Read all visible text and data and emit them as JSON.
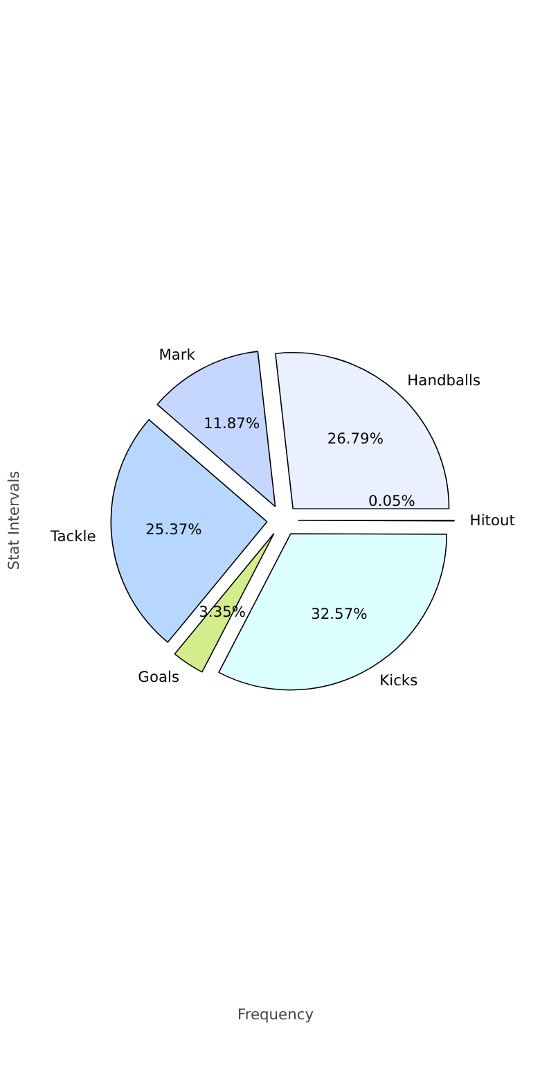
{
  "chart_data": {
    "type": "pie",
    "xlabel": "Frequency",
    "ylabel": "Stat Intervals",
    "categories": [
      "Handballs",
      "Mark",
      "Tackle",
      "Goals",
      "Kicks",
      "Hitout"
    ],
    "values": [
      26.79,
      11.87,
      25.37,
      3.35,
      32.57,
      0.05
    ],
    "colors": [
      "#eaf0ff",
      "#c6d7ff",
      "#b7d7ff",
      "#d3ec8c",
      "#dcffff",
      "#e6e6ff"
    ],
    "value_labels": [
      "26.79%",
      "11.87%",
      "25.37%",
      "3.35%",
      "32.57%",
      "0.05%"
    ]
  }
}
